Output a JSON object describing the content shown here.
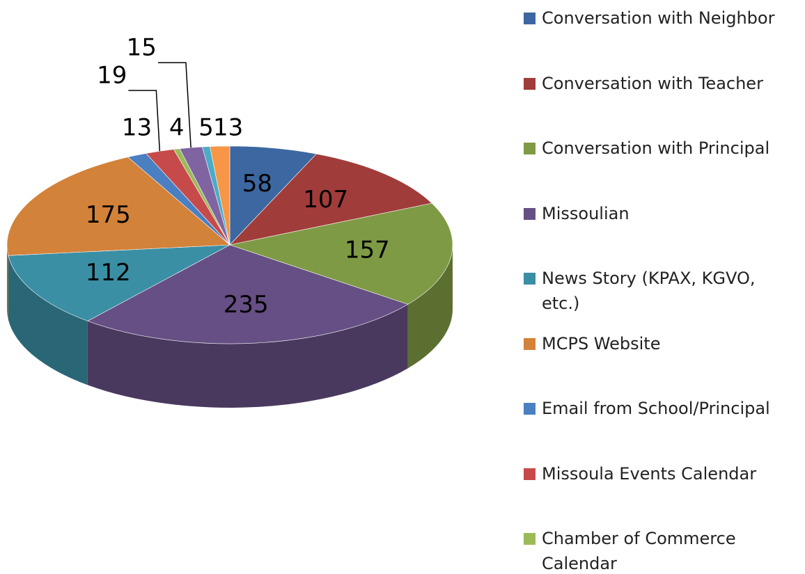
{
  "chart_data": {
    "type": "pie",
    "categories": [
      "Conversation with Neighbor",
      "Conversation with Teacher",
      "Conversation with Principal",
      "Missoulian",
      "News Story (KPAX, KGVO, etc.)",
      "MCPS Website",
      "Email from School/Principal",
      "Missoula Events Calendar",
      "Chamber of Commerce Calendar",
      null,
      null,
      null
    ],
    "values": [
      58,
      107,
      157,
      235,
      112,
      175,
      13,
      19,
      4,
      15,
      5,
      13
    ],
    "colors": [
      "#3c67a0",
      "#a03c3a",
      "#7e9a44",
      "#664f84",
      "#3b8fa4",
      "#d3823a",
      "#4a7fc1",
      "#c74a4a",
      "#9bbb59",
      "#8064a2",
      "#4bacc6",
      "#f79646"
    ]
  }
}
